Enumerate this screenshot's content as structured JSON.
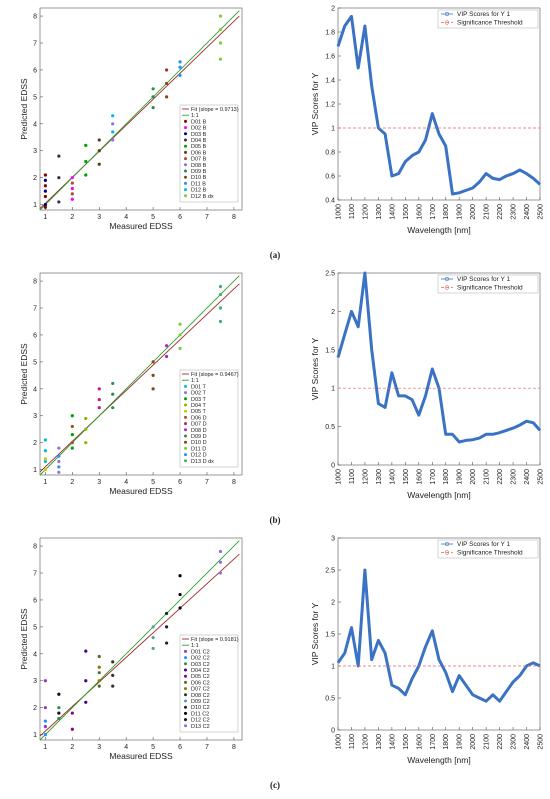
{
  "chart_data": [
    {
      "type": "scatter",
      "xlabel": "Measured EDSS",
      "ylabel": "Predicted EDSS",
      "xlim": [
        0.8,
        8.3
      ],
      "ylim": [
        0.8,
        8.3
      ],
      "xticks": [
        1,
        2,
        3,
        4,
        5,
        6,
        7,
        8
      ],
      "yticks": [
        1,
        2,
        3,
        4,
        5,
        6,
        7,
        8
      ],
      "series": [
        {
          "name": "Fit (slope = 0.9713)",
          "color": "#a0292b",
          "mode": "line",
          "x": [
            0.8,
            8.2
          ],
          "values": [
            0.86,
            8.0
          ]
        },
        {
          "name": "1:1",
          "color": "#2ca02c",
          "mode": "line",
          "x": [
            0.8,
            8.2
          ],
          "values": [
            0.8,
            8.2
          ]
        },
        {
          "name": "D01 B",
          "color": "#8b0000",
          "x": [
            1,
            1,
            1,
            1
          ],
          "values": [
            0.9,
            1.3,
            1.7,
            2.1
          ]
        },
        {
          "name": "D02 B",
          "color": "#ff00ff",
          "x": [
            2,
            2,
            2
          ],
          "values": [
            1.2,
            1.6,
            2.0
          ]
        },
        {
          "name": "D03 B",
          "color": "#000080",
          "x": [
            1,
            1,
            1
          ],
          "values": [
            1.0,
            1.5,
            1.9
          ]
        },
        {
          "name": "D04 B",
          "color": "#333333",
          "x": [
            1.5,
            1.5,
            1.5
          ],
          "values": [
            1.1,
            2.0,
            2.8
          ]
        },
        {
          "name": "D05 B",
          "color": "#00a000",
          "x": [
            2.5,
            2.5,
            2.5
          ],
          "values": [
            2.1,
            2.6,
            3.2
          ]
        },
        {
          "name": "D06 B",
          "color": "#5a3e1b",
          "x": [
            3,
            3,
            3
          ],
          "values": [
            2.5,
            3.0,
            3.4
          ]
        },
        {
          "name": "D07 B",
          "color": "#a0522d",
          "x": [
            2,
            2
          ],
          "values": [
            1.4,
            1.8
          ]
        },
        {
          "name": "D08 B",
          "color": "#9370db",
          "x": [
            3.5,
            3.5
          ],
          "values": [
            3.4,
            4.0
          ]
        },
        {
          "name": "D09 B",
          "color": "#2e8b57",
          "x": [
            5,
            5,
            5
          ],
          "values": [
            4.6,
            5.0,
            5.3
          ]
        },
        {
          "name": "D10 B",
          "color": "#8b4513",
          "x": [
            5.5,
            5.5,
            5.5
          ],
          "values": [
            5.0,
            5.5,
            6.0
          ]
        },
        {
          "name": "D11 B",
          "color": "#1e90ff",
          "x": [
            6,
            6,
            6
          ],
          "values": [
            5.8,
            6.1,
            6.3
          ]
        },
        {
          "name": "D12 B",
          "color": "#00bcd4",
          "x": [
            3.5,
            3.5
          ],
          "values": [
            3.7,
            4.3
          ]
        },
        {
          "name": "D12 B dx",
          "color": "#7ccd32",
          "x": [
            7.5,
            7.5,
            7.5,
            7.5
          ],
          "values": [
            6.4,
            7.0,
            7.5,
            8.0
          ]
        }
      ]
    },
    {
      "type": "line",
      "xlabel": "Wavelength [nm]",
      "ylabel": "VIP Scores for Y",
      "xlim": [
        1000,
        2500
      ],
      "ylim": [
        0.4,
        2
      ],
      "xticks": [
        1000,
        1100,
        1200,
        1300,
        1400,
        1500,
        1600,
        1700,
        1800,
        1900,
        2000,
        2100,
        2200,
        2300,
        2400,
        2500
      ],
      "yticks": [
        0.4,
        0.6,
        0.8,
        1,
        1.2,
        1.4,
        1.6,
        1.8,
        2
      ],
      "series": [
        {
          "name": "VIP Scores for Y 1",
          "color": "#3a72c4",
          "x": [
            1000,
            1050,
            1100,
            1150,
            1200,
            1250,
            1300,
            1350,
            1400,
            1450,
            1500,
            1550,
            1600,
            1650,
            1700,
            1750,
            1800,
            1850,
            1900,
            1950,
            2000,
            2050,
            2100,
            2150,
            2200,
            2250,
            2300,
            2350,
            2400,
            2450,
            2500
          ],
          "values": [
            1.68,
            1.85,
            1.93,
            1.5,
            1.85,
            1.35,
            1.0,
            0.95,
            0.6,
            0.62,
            0.72,
            0.77,
            0.8,
            0.9,
            1.12,
            0.95,
            0.85,
            0.45,
            0.46,
            0.48,
            0.5,
            0.55,
            0.62,
            0.58,
            0.57,
            0.6,
            0.62,
            0.65,
            0.62,
            0.58,
            0.53
          ]
        },
        {
          "name": "Significance Threshold",
          "color": "#e06666",
          "dash": true,
          "x": [
            1000,
            2500
          ],
          "values": [
            1,
            1
          ]
        }
      ]
    },
    {
      "type": "scatter",
      "xlabel": "Measured EDSS",
      "ylabel": "Predicted EDSS",
      "xlim": [
        0.8,
        8.3
      ],
      "ylim": [
        0.8,
        8.3
      ],
      "xticks": [
        1,
        2,
        3,
        4,
        5,
        6,
        7,
        8
      ],
      "yticks": [
        1,
        2,
        3,
        4,
        5,
        6,
        7,
        8
      ],
      "series": [
        {
          "name": "Fit (slope = 0.9467)",
          "color": "#a0292b",
          "mode": "line",
          "x": [
            0.8,
            8.2
          ],
          "values": [
            0.92,
            7.9
          ]
        },
        {
          "name": "1:1",
          "color": "#2ca02c",
          "mode": "line",
          "x": [
            0.8,
            8.2
          ],
          "values": [
            0.8,
            8.2
          ]
        },
        {
          "name": "D01 T",
          "color": "#00bcd4",
          "x": [
            1,
            1,
            1
          ],
          "values": [
            1.3,
            1.7,
            2.1
          ]
        },
        {
          "name": "D02 T",
          "color": "#9370db",
          "x": [
            1.5,
            1.5,
            1.5
          ],
          "values": [
            0.9,
            1.3,
            1.8
          ]
        },
        {
          "name": "D03 T",
          "color": "#00a000",
          "x": [
            2,
            2,
            2
          ],
          "values": [
            1.8,
            2.3,
            3.0
          ]
        },
        {
          "name": "D04 T",
          "color": "#8db600",
          "x": [
            2.5,
            2.5,
            2.5
          ],
          "values": [
            2.0,
            2.5,
            2.9
          ]
        },
        {
          "name": "D05 T",
          "color": "#cccc00",
          "x": [
            1,
            1
          ],
          "values": [
            1.0,
            1.4
          ]
        },
        {
          "name": "D06 D",
          "color": "#a0522d",
          "x": [
            2,
            2
          ],
          "values": [
            2.0,
            2.6
          ]
        },
        {
          "name": "D07 D",
          "color": "#c71585",
          "x": [
            3,
            3,
            3
          ],
          "values": [
            3.3,
            3.6,
            4.0
          ]
        },
        {
          "name": "D08 D",
          "color": "#9932cc",
          "x": [
            5.5,
            5.5
          ],
          "values": [
            5.2,
            5.6
          ]
        },
        {
          "name": "D09 D",
          "color": "#2e8b57",
          "x": [
            3.5,
            3.5,
            3.5
          ],
          "values": [
            3.3,
            3.8,
            4.2
          ]
        },
        {
          "name": "D10 D",
          "color": "#8b4513",
          "x": [
            5,
            5,
            5
          ],
          "values": [
            4.0,
            4.5,
            5.0
          ]
        },
        {
          "name": "D11 D",
          "color": "#7ccd32",
          "x": [
            6,
            6,
            6
          ],
          "values": [
            5.5,
            6.0,
            6.4
          ]
        },
        {
          "name": "D12 D",
          "color": "#1e90ff",
          "x": [
            1.5,
            1.5
          ],
          "values": [
            1.1,
            1.5
          ]
        },
        {
          "name": "D13 D dx",
          "color": "#3cb371",
          "x": [
            7.5,
            7.5,
            7.5,
            7.5
          ],
          "values": [
            6.5,
            7.0,
            7.5,
            7.8
          ]
        }
      ]
    },
    {
      "type": "line",
      "xlabel": "Wavelength [nm]",
      "ylabel": "VIP Scores for Y",
      "xlim": [
        1000,
        2500
      ],
      "ylim": [
        0,
        2.5
      ],
      "xticks": [
        1000,
        1100,
        1200,
        1300,
        1400,
        1500,
        1600,
        1700,
        1800,
        1900,
        2000,
        2100,
        2200,
        2300,
        2400,
        2500
      ],
      "yticks": [
        0,
        0.5,
        1,
        1.5,
        2,
        2.5
      ],
      "series": [
        {
          "name": "VIP Scores for Y 1",
          "color": "#3a72c4",
          "x": [
            1000,
            1050,
            1100,
            1150,
            1200,
            1250,
            1300,
            1350,
            1400,
            1450,
            1500,
            1550,
            1600,
            1650,
            1700,
            1750,
            1800,
            1850,
            1900,
            1950,
            2000,
            2050,
            2100,
            2150,
            2200,
            2250,
            2300,
            2350,
            2400,
            2450,
            2500
          ],
          "values": [
            1.4,
            1.7,
            2.0,
            1.8,
            2.5,
            1.5,
            0.8,
            0.75,
            1.2,
            0.9,
            0.9,
            0.85,
            0.65,
            0.9,
            1.25,
            1.0,
            0.4,
            0.4,
            0.3,
            0.32,
            0.33,
            0.35,
            0.4,
            0.4,
            0.42,
            0.45,
            0.48,
            0.52,
            0.57,
            0.55,
            0.45
          ]
        },
        {
          "name": "Significance Threshold",
          "color": "#e06666",
          "dash": true,
          "x": [
            1000,
            2500
          ],
          "values": [
            1,
            1
          ]
        }
      ]
    },
    {
      "type": "scatter",
      "xlabel": "Measured EDSS",
      "ylabel": "Predicted EDSS",
      "xlim": [
        0.8,
        8.3
      ],
      "ylim": [
        0.8,
        8.3
      ],
      "xticks": [
        1,
        2,
        3,
        4,
        5,
        6,
        7,
        8
      ],
      "yticks": [
        1,
        2,
        3,
        4,
        5,
        6,
        7,
        8
      ],
      "series": [
        {
          "name": "Fit (slope = 0.9181)",
          "color": "#a0292b",
          "mode": "line",
          "x": [
            0.8,
            8.2
          ],
          "values": [
            0.95,
            7.7
          ]
        },
        {
          "name": "1:1",
          "color": "#2ca02c",
          "mode": "line",
          "x": [
            0.8,
            8.2
          ],
          "values": [
            0.8,
            8.2
          ]
        },
        {
          "name": "D01 C2",
          "color": "#9932cc",
          "x": [
            1,
            1,
            1
          ],
          "values": [
            1.3,
            2.0,
            3.0
          ]
        },
        {
          "name": "D02 C2",
          "color": "#1e90ff",
          "x": [
            1,
            1
          ],
          "values": [
            1.0,
            1.5
          ]
        },
        {
          "name": "D03 C2",
          "color": "#2e8b57",
          "x": [
            1.5,
            1.5
          ],
          "values": [
            1.6,
            2.0
          ]
        },
        {
          "name": "D04 C2",
          "color": "#4b0082",
          "x": [
            2.5,
            2.5,
            2.5
          ],
          "values": [
            2.2,
            3.0,
            4.1
          ]
        },
        {
          "name": "D05 C2",
          "color": "#8b008b",
          "x": [
            2,
            2
          ],
          "values": [
            1.2,
            1.8
          ]
        },
        {
          "name": "D06 C2",
          "color": "#556b2f",
          "x": [
            3,
            3,
            3
          ],
          "values": [
            2.8,
            3.3,
            3.9
          ]
        },
        {
          "name": "D07 C2",
          "color": "#808000",
          "x": [
            3,
            3
          ],
          "values": [
            3.0,
            3.5
          ]
        },
        {
          "name": "D08 C2",
          "color": "#333333",
          "x": [
            3.5,
            3.5,
            3.5
          ],
          "values": [
            2.8,
            3.2,
            3.7
          ]
        },
        {
          "name": "D09 C2",
          "color": "#5f9ea0",
          "x": [
            5,
            5,
            5
          ],
          "values": [
            4.2,
            4.6,
            5.0
          ]
        },
        {
          "name": "D10 C2",
          "color": "#222222",
          "x": [
            5.5,
            5.5,
            5.5
          ],
          "values": [
            4.4,
            5.0,
            5.5
          ]
        },
        {
          "name": "D11 C2",
          "color": "#000000",
          "x": [
            6,
            6,
            6
          ],
          "values": [
            5.7,
            6.2,
            6.9
          ]
        },
        {
          "name": "D12 C2",
          "color": "#111111",
          "x": [
            1.5,
            1.5
          ],
          "values": [
            1.8,
            2.5
          ]
        },
        {
          "name": "D13 C2",
          "color": "#9370db",
          "x": [
            7.5,
            7.5,
            7.5
          ],
          "values": [
            7.0,
            7.4,
            7.8
          ]
        }
      ]
    },
    {
      "type": "line",
      "xlabel": "Wavelength [nm]",
      "ylabel": "VIP Scores for Y",
      "xlim": [
        1000,
        2500
      ],
      "ylim": [
        0,
        3
      ],
      "xticks": [
        1000,
        1100,
        1200,
        1300,
        1400,
        1500,
        1600,
        1700,
        1800,
        1900,
        2000,
        2100,
        2200,
        2300,
        2400,
        2500
      ],
      "yticks": [
        0,
        0.5,
        1,
        1.5,
        2,
        2.5,
        3
      ],
      "series": [
        {
          "name": "VIP Scores for Y 1",
          "color": "#3a72c4",
          "x": [
            1000,
            1050,
            1100,
            1150,
            1200,
            1250,
            1300,
            1350,
            1400,
            1450,
            1500,
            1550,
            1600,
            1650,
            1700,
            1750,
            1800,
            1850,
            1900,
            1950,
            2000,
            2050,
            2100,
            2150,
            2200,
            2250,
            2300,
            2350,
            2400,
            2450,
            2500
          ],
          "values": [
            1.05,
            1.2,
            1.6,
            1.0,
            2.5,
            1.1,
            1.4,
            1.2,
            0.7,
            0.65,
            0.55,
            0.8,
            1.0,
            1.3,
            1.55,
            1.1,
            0.9,
            0.6,
            0.85,
            0.7,
            0.55,
            0.5,
            0.45,
            0.55,
            0.45,
            0.6,
            0.75,
            0.85,
            1.0,
            1.05,
            1.0
          ]
        },
        {
          "name": "Significance Threshold",
          "color": "#e06666",
          "dash": true,
          "x": [
            1000,
            2500
          ],
          "values": [
            1,
            1
          ]
        }
      ]
    }
  ],
  "panel_labels": [
    "(a)",
    "(b)",
    "(c)"
  ]
}
